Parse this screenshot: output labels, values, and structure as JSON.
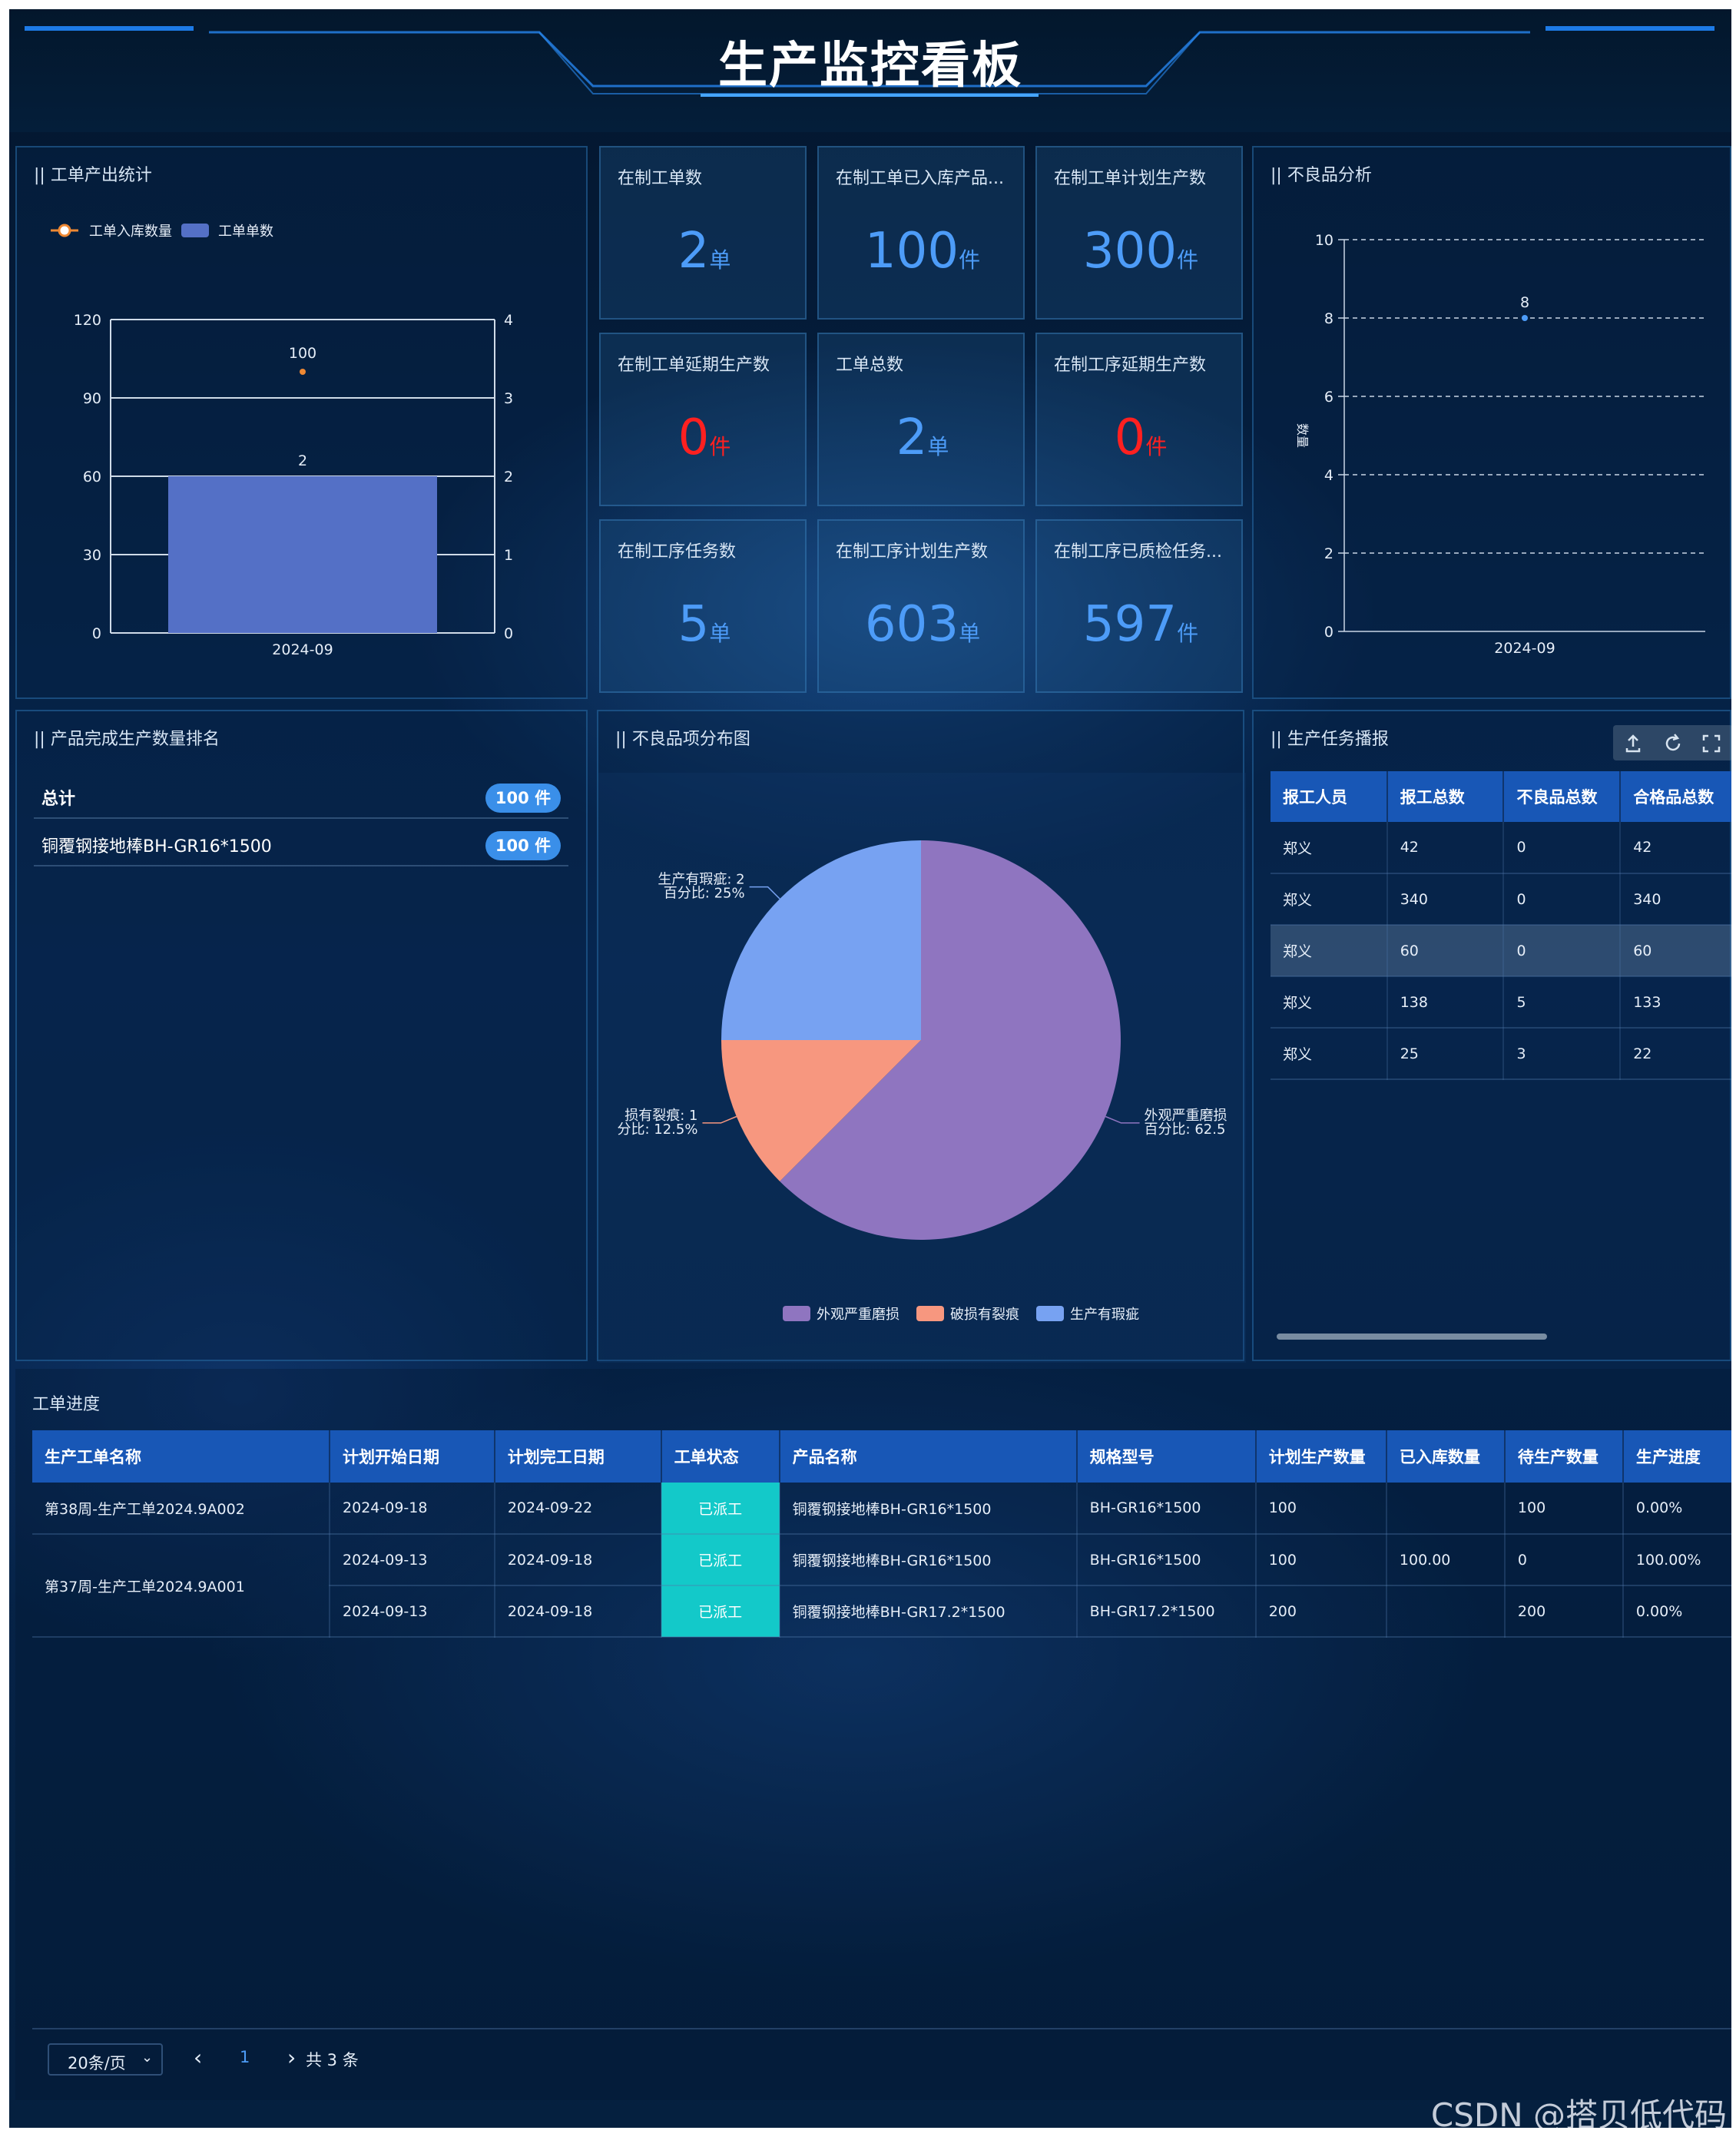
{
  "header": {
    "title": "生产监控看板"
  },
  "output_stats": {
    "title": "|| 工单产出统计",
    "legend": [
      "工单入库数量",
      "工单单数"
    ],
    "chart_data": {
      "type": "bar",
      "categories": [
        "2024-09"
      ],
      "series": [
        {
          "name": "工单单数",
          "type": "bar",
          "values": [
            2
          ],
          "axis": "right",
          "color": "#5470c6"
        },
        {
          "name": "工单入库数量",
          "type": "line",
          "values": [
            100
          ],
          "axis": "left",
          "color": "#ee8833"
        }
      ],
      "ylim_left": [
        0,
        120
      ],
      "yticks_left": [
        0,
        30,
        60,
        90,
        120
      ],
      "ylim_right": [
        0,
        4
      ],
      "yticks_right": [
        0,
        1,
        2,
        3,
        4
      ],
      "data_labels": [
        "2",
        "100"
      ],
      "grid": true,
      "legend_position": "top-left"
    }
  },
  "kpis": [
    {
      "label": "在制工单数",
      "value": "2",
      "unit": "单",
      "color": "blue"
    },
    {
      "label": "在制工单已入库产品...",
      "value": "100",
      "unit": "件",
      "color": "blue"
    },
    {
      "label": "在制工单计划生产数",
      "value": "300",
      "unit": "件",
      "color": "blue"
    },
    {
      "label": "在制工单延期生产数",
      "value": "0",
      "unit": "件",
      "color": "red"
    },
    {
      "label": "工单总数",
      "value": "2",
      "unit": "单",
      "color": "blue"
    },
    {
      "label": "在制工序延期生产数",
      "value": "0",
      "unit": "件",
      "color": "red"
    },
    {
      "label": "在制工序任务数",
      "value": "5",
      "unit": "单",
      "color": "blue"
    },
    {
      "label": "在制工序计划生产数",
      "value": "603",
      "unit": "单",
      "color": "blue"
    },
    {
      "label": "在制工序已质检任务...",
      "value": "597",
      "unit": "件",
      "color": "blue"
    }
  ],
  "defect_analysis": {
    "title": "|| 不良品分析",
    "chart_data": {
      "type": "scatter",
      "x": [
        "2024-09"
      ],
      "values": [
        8
      ],
      "data_labels": [
        "8"
      ],
      "ylabel": "数量",
      "ylim": [
        0,
        10
      ],
      "yticks": [
        0,
        2,
        4,
        6,
        8,
        10
      ],
      "grid": true
    }
  },
  "ranking": {
    "title": "|| 产品完成生产数量排名",
    "rows": [
      {
        "name": "总计",
        "badge": "100 件"
      },
      {
        "name": "铜覆钢接地棒BH-GR16*1500",
        "badge": "100 件"
      }
    ]
  },
  "defect_pie": {
    "title": "|| 不良品项分布图",
    "chart_data": {
      "type": "pie",
      "categories": [
        "外观严重磨损",
        "破损有裂痕",
        "生产有瑕疵"
      ],
      "values": [
        5,
        1,
        2
      ],
      "percentages": [
        62.5,
        12.5,
        25
      ],
      "colors": [
        "#8f75c0",
        "#f7977f",
        "#77a2f2"
      ],
      "slice_labels": [
        {
          "line1": "外观严重磨损",
          "line2": "百分比: 62.5"
        },
        {
          "line1": "损有裂痕: 1",
          "line2": "分比: 12.5%"
        },
        {
          "line1": "生产有瑕疵: 2",
          "line2": "百分比: 25%"
        }
      ],
      "legend_position": "bottom"
    }
  },
  "task_broadcast": {
    "title": "|| 生产任务播报",
    "tools": [
      "export-icon",
      "refresh-icon",
      "fullscreen-icon"
    ],
    "columns": [
      "报工人员",
      "报工总数",
      "不良品总数",
      "合格品总数"
    ],
    "rows": [
      [
        "郑义",
        "42",
        "0",
        "42"
      ],
      [
        "郑义",
        "340",
        "0",
        "340"
      ],
      [
        "郑义",
        "60",
        "0",
        "60"
      ],
      [
        "郑义",
        "138",
        "5",
        "133"
      ],
      [
        "郑义",
        "25",
        "3",
        "22"
      ]
    ]
  },
  "work_progress": {
    "title": "工单进度",
    "columns": [
      "生产工单名称",
      "计划开始日期",
      "计划完工日期",
      "工单状态",
      "产品名称",
      "规格型号",
      "计划生产数量",
      "已入库数量",
      "待生产数量",
      "生产进度"
    ],
    "rows": [
      [
        "第38周-生产工单2024.9A002",
        "2024-09-18",
        "2024-09-22",
        "已派工",
        "铜覆钢接地棒BH-GR16*1500",
        "BH-GR16*1500",
        "100",
        "",
        "100",
        "0.00%"
      ],
      [
        "第37周-生产工单2024.9A001",
        "2024-09-13",
        "2024-09-18",
        "已派工",
        "铜覆钢接地棒BH-GR16*1500",
        "BH-GR16*1500",
        "100",
        "100.00",
        "0",
        "100.00%"
      ],
      [
        "",
        "2024-09-13",
        "2024-09-18",
        "已派工",
        "铜覆钢接地棒BH-GR17.2*1500",
        "BH-GR17.2*1500",
        "200",
        "",
        "200",
        "0.00%"
      ]
    ],
    "pagination": {
      "page_size": "20条/页",
      "prev": "‹",
      "page": "1",
      "next": "›",
      "total": "共 3 条"
    }
  },
  "watermark": "CSDN @搭贝低代码"
}
